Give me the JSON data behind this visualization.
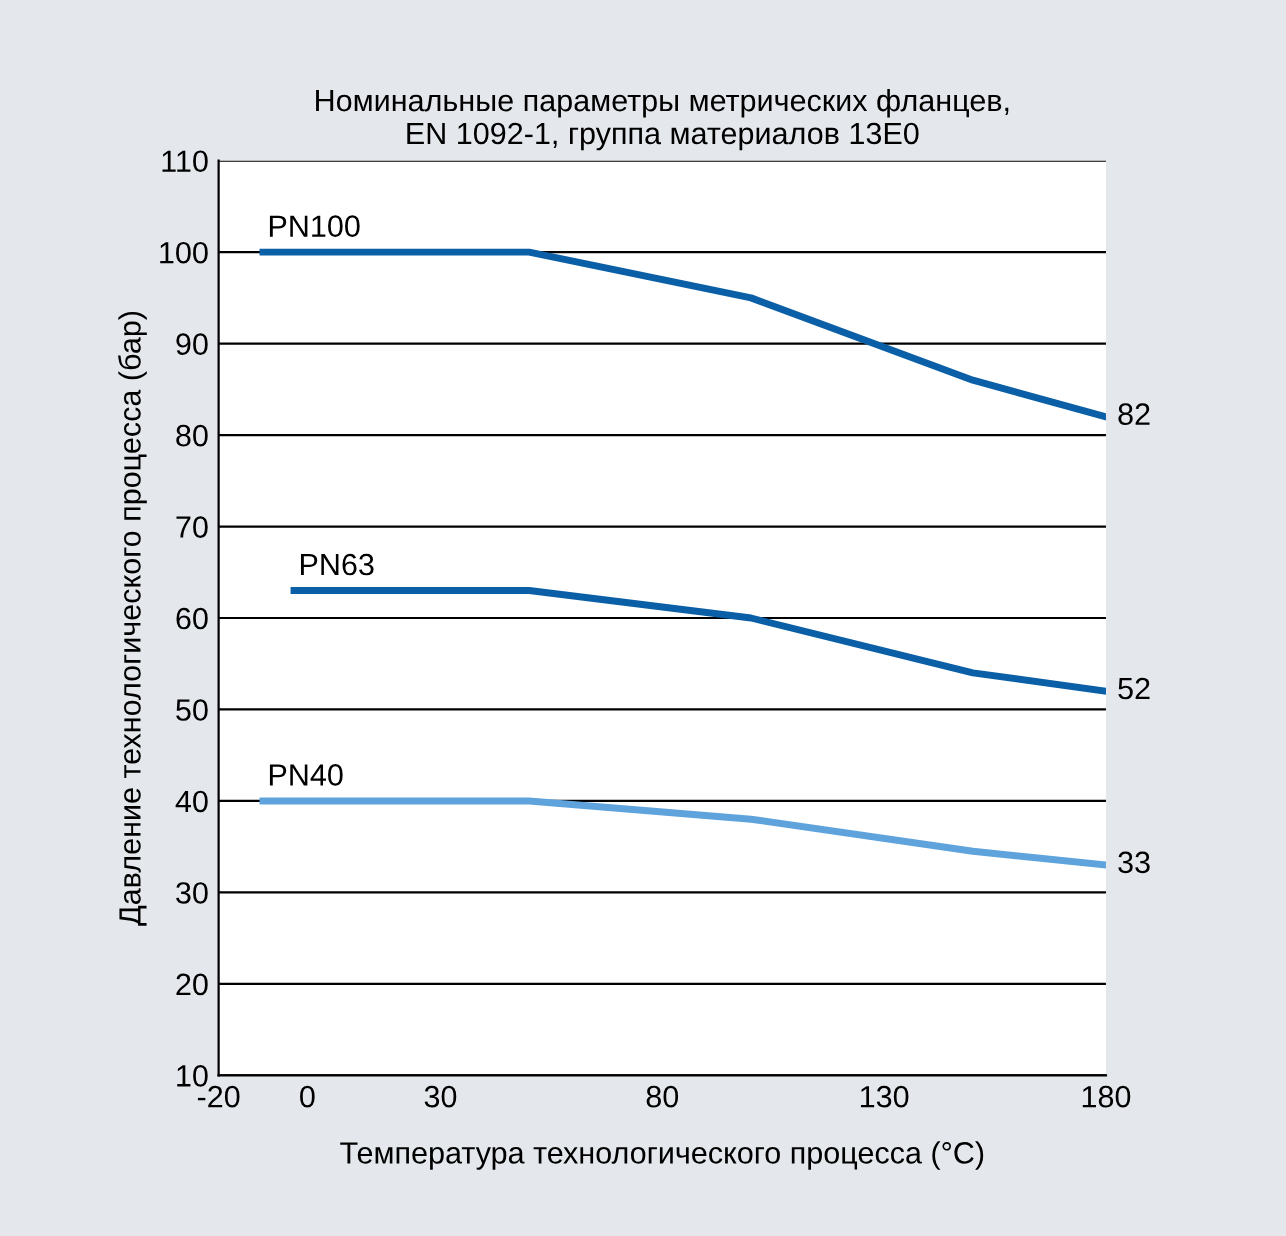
{
  "chart_data": {
    "type": "line",
    "title": "Номинальные параметры метрических фланцев,\nEN 1092-1, группа материалов 13E0",
    "xlabel": "Температура технологического процесса (°C)",
    "ylabel": "Давление технологического процесса (бар)",
    "series": [
      {
        "name": "PN100",
        "color": "#0a5fa6",
        "x": [
          -10,
          50,
          100,
          150,
          180
        ],
        "values": [
          100,
          100,
          95,
          86,
          82
        ],
        "value_labels": [
          null,
          null,
          null,
          null,
          "82"
        ]
      },
      {
        "name": "PN63",
        "color": "#0a5fa6",
        "x": [
          -3,
          50,
          100,
          150,
          180
        ],
        "values": [
          63,
          63,
          60,
          54,
          52
        ],
        "value_labels": [
          null,
          null,
          null,
          null,
          "52"
        ]
      },
      {
        "name": "PN40",
        "color": "#5fa3dc",
        "x": [
          -10,
          50,
          100,
          150,
          180
        ],
        "values": [
          40,
          40,
          38,
          34.5,
          33
        ],
        "value_labels": [
          null,
          null,
          null,
          null,
          "33"
        ]
      }
    ],
    "xlim": [
      -20,
      180
    ],
    "xticks": [
      -20,
      0,
      30,
      80,
      130,
      180
    ],
    "ylim": [
      10,
      110
    ],
    "yticks": [
      10,
      20,
      30,
      40,
      50,
      60,
      70,
      80,
      90,
      100,
      110
    ],
    "grid": "y",
    "legend": false,
    "marker": "none",
    "line_style": "solid"
  }
}
